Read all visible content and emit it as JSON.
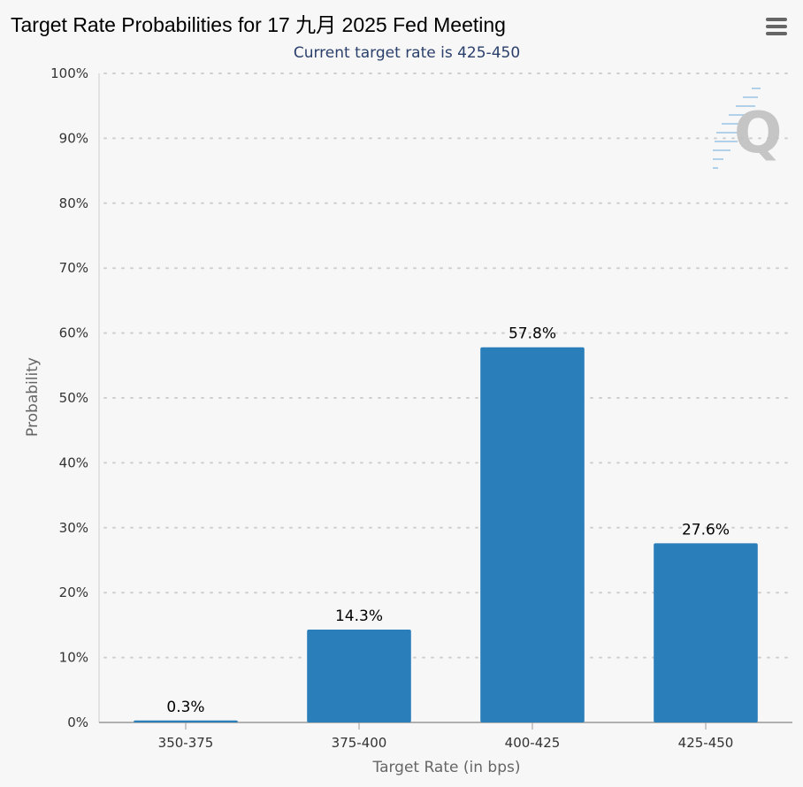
{
  "title": "Target Rate Probabilities for 17 九月 2025 Fed Meeting",
  "subtitle": "Current target rate is 425-450",
  "menu": {
    "icon": "hamburger-menu-icon"
  },
  "watermark": {
    "icon": "quikstrike-logo-icon",
    "text": "Q"
  },
  "colors": {
    "bar": "#2a7fba",
    "grid": "#cfcfcf",
    "subtitle": "#2a3f6b",
    "background": "#f7f7f7"
  },
  "chart_data": {
    "type": "bar",
    "categories": [
      "350-375",
      "375-400",
      "400-425",
      "425-450"
    ],
    "values": [
      0.3,
      14.3,
      57.8,
      27.6
    ],
    "data_labels": [
      "0.3%",
      "14.3%",
      "57.8%",
      "27.6%"
    ],
    "xlabel": "Target Rate (in bps)",
    "ylabel": "Probability",
    "ylim": [
      0,
      100
    ],
    "yticks": [
      0,
      10,
      20,
      30,
      40,
      50,
      60,
      70,
      80,
      90,
      100
    ],
    "ytick_labels": [
      "0%",
      "10%",
      "20%",
      "30%",
      "40%",
      "50%",
      "60%",
      "70%",
      "80%",
      "90%",
      "100%"
    ],
    "grid": true,
    "legend": false
  }
}
